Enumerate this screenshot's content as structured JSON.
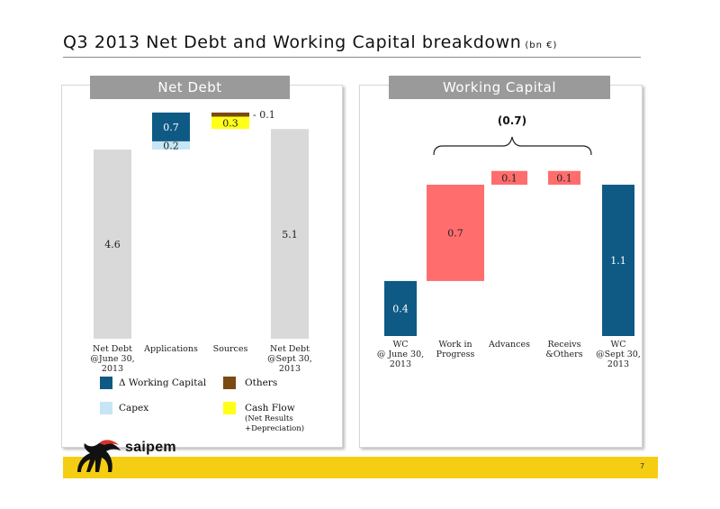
{
  "title": "Q3 2013 Net Debt and Working Capital breakdown",
  "title_unit": "(bn €)",
  "page_number": "7",
  "logo_text": "saipem",
  "colors": {
    "grey_bar": "#d9d9d9",
    "working_capital": "#0f5a85",
    "capex": "#c6e6f5",
    "others": "#7a4a10",
    "cash_flow": "#ffff1a",
    "wc_pink": "#ff6d6d",
    "header_grey": "#9a9a9a",
    "footer_yellow": "#f5cd12"
  },
  "net_debt_panel": {
    "header": "Net Debt",
    "legend": {
      "working_capital": "Δ Working Capital",
      "others": "Others",
      "capex": "Capex",
      "cash_flow": "Cash Flow",
      "cash_flow_note": "(Net Results\n+Depreciation)"
    }
  },
  "working_capital_panel": {
    "header": "Working Capital",
    "brace_label": "(0.7)"
  },
  "chart_data": [
    {
      "type": "bar",
      "subtype": "waterfall",
      "title": "Net Debt",
      "categories": [
        "Net Debt\n@June 30,\n2013",
        "Applications",
        "Sources",
        "Net Debt\n@Sept 30,\n2013"
      ],
      "ylim": [
        0,
        6.8
      ],
      "series": [
        {
          "name": "",
          "color_key": "grey_bar",
          "values": [
            4.6,
            null,
            null,
            5.1
          ],
          "labels": [
            "4.6",
            "",
            "",
            "5.1"
          ]
        },
        {
          "name": "Capex",
          "color_key": "capex",
          "values": [
            null,
            0.2,
            null,
            null
          ],
          "base": [
            null,
            4.6,
            null,
            null
          ],
          "labels": [
            "",
            "0.2",
            "",
            ""
          ]
        },
        {
          "name": "Δ Working Capital",
          "color_key": "working_capital",
          "values": [
            null,
            0.7,
            null,
            null
          ],
          "base": [
            null,
            4.8,
            null,
            null
          ],
          "labels": [
            "",
            "0.7",
            "",
            ""
          ]
        },
        {
          "name": "Cash Flow",
          "color_key": "cash_flow",
          "values": [
            null,
            null,
            -0.3,
            null
          ],
          "base": [
            null,
            null,
            5.4,
            null
          ],
          "labels": [
            "",
            "",
            "0.3",
            ""
          ]
        },
        {
          "name": "Others",
          "color_key": "others",
          "values": [
            null,
            null,
            -0.1,
            null
          ],
          "base": [
            null,
            null,
            5.5,
            null
          ],
          "labels": [
            "",
            "",
            "- 0.1",
            ""
          ]
        }
      ]
    },
    {
      "type": "bar",
      "subtype": "waterfall",
      "title": "Working Capital",
      "categories": [
        "WC\n@ June 30,\n2013",
        "Work in\nProgress",
        "Advances",
        "Receivs\n&Others",
        "WC\n@Sept 30,\n2013"
      ],
      "ylim": [
        0,
        1.35
      ],
      "values": [
        0.4,
        0.7,
        0.1,
        0.1,
        1.1
      ],
      "base": [
        0,
        0.4,
        1.1,
        1.1,
        0
      ],
      "labels": [
        "0.4",
        "0.7",
        "0.1",
        "0.1",
        "1.1"
      ],
      "color_keys": [
        "working_capital",
        "wc_pink",
        "wc_pink",
        "wc_pink",
        "working_capital"
      ],
      "annotation": "(0.7)"
    }
  ]
}
